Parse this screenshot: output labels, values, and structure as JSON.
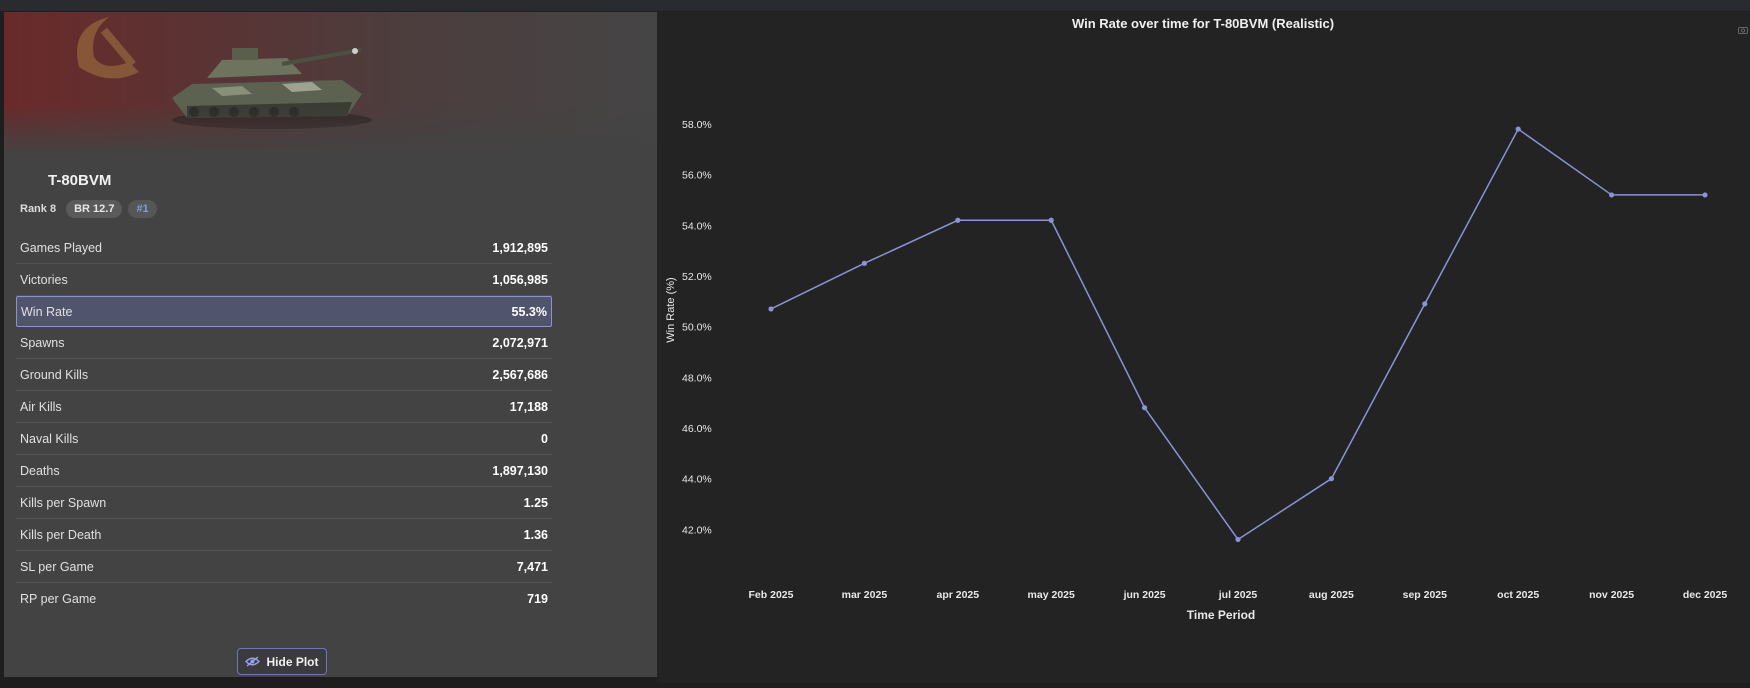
{
  "vehicle": {
    "name": "T-80BVM",
    "rank": "Rank 8",
    "br": "BR 12.7",
    "position_badge": "#1"
  },
  "stats": [
    {
      "label": "Games Played",
      "value": "1,912,895"
    },
    {
      "label": "Victories",
      "value": "1,056,985"
    },
    {
      "label": "Win Rate",
      "value": "55.3%"
    },
    {
      "label": "Spawns",
      "value": "2,072,971"
    },
    {
      "label": "Ground Kills",
      "value": "2,567,686"
    },
    {
      "label": "Air Kills",
      "value": "17,188"
    },
    {
      "label": "Naval Kills",
      "value": "0"
    },
    {
      "label": "Deaths",
      "value": "1,897,130"
    },
    {
      "label": "Kills per Spawn",
      "value": "1.25"
    },
    {
      "label": "Kills per Death",
      "value": "1.36"
    },
    {
      "label": "SL per Game",
      "value": "7,471"
    },
    {
      "label": "RP per Game",
      "value": "719"
    }
  ],
  "buttons": {
    "hide_plot": "Hide Plot"
  },
  "colors": {
    "accent": "#8b93d6",
    "line": "#8b93d6",
    "highlight_row": "#51546d"
  },
  "chart_data": {
    "type": "line",
    "title": "Win Rate over time for T-80BVM (Realistic)",
    "xlabel": "Time Period",
    "ylabel": "Win Rate (%)",
    "categories": [
      "Feb 2025",
      "mar 2025",
      "apr 2025",
      "may 2025",
      "jun 2025",
      "jul 2025",
      "aug 2025",
      "sep 2025",
      "oct 2025",
      "nov 2025",
      "dec 2025"
    ],
    "values": [
      50.7,
      52.5,
      54.2,
      54.2,
      46.8,
      41.6,
      44.0,
      50.9,
      57.8,
      55.2,
      55.2
    ],
    "y_ticks": [
      "42.0%",
      "44.0%",
      "46.0%",
      "48.0%",
      "50.0%",
      "52.0%",
      "54.0%",
      "56.0%",
      "58.0%"
    ],
    "ylim": [
      40.0,
      59.5
    ],
    "grid": false,
    "legend": "none"
  }
}
